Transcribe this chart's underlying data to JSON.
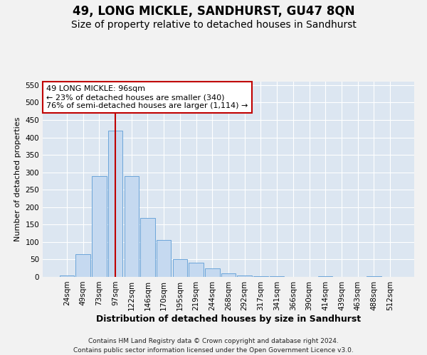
{
  "title": "49, LONG MICKLE, SANDHURST, GU47 8QN",
  "subtitle": "Size of property relative to detached houses in Sandhurst",
  "xlabel": "Distribution of detached houses by size in Sandhurst",
  "ylabel": "Number of detached properties",
  "categories": [
    "24sqm",
    "49sqm",
    "73sqm",
    "97sqm",
    "122sqm",
    "146sqm",
    "170sqm",
    "195sqm",
    "219sqm",
    "244sqm",
    "268sqm",
    "292sqm",
    "317sqm",
    "341sqm",
    "366sqm",
    "390sqm",
    "414sqm",
    "439sqm",
    "463sqm",
    "488sqm",
    "512sqm"
  ],
  "values": [
    5,
    65,
    290,
    420,
    290,
    170,
    105,
    50,
    40,
    25,
    10,
    5,
    3,
    2,
    1,
    1,
    2,
    1,
    1,
    2,
    1
  ],
  "bar_color": "#c5d9f0",
  "bar_edge_color": "#5b9bd5",
  "fig_bg_color": "#f2f2f2",
  "plot_bg_color": "#dce6f1",
  "grid_color": "#ffffff",
  "vline_color": "#c00000",
  "vline_x_index": 3,
  "annotation_line1": "49 LONG MICKLE: 96sqm",
  "annotation_line2": "← 23% of detached houses are smaller (340)",
  "annotation_line3": "76% of semi-detached houses are larger (1,114) →",
  "annotation_box_fc": "#ffffff",
  "annotation_box_ec": "#c00000",
  "ylim": [
    0,
    560
  ],
  "yticks": [
    0,
    50,
    100,
    150,
    200,
    250,
    300,
    350,
    400,
    450,
    500,
    550
  ],
  "footer": "Contains HM Land Registry data © Crown copyright and database right 2024.\nContains public sector information licensed under the Open Government Licence v3.0.",
  "title_fontsize": 12,
  "subtitle_fontsize": 10,
  "xlabel_fontsize": 9,
  "ylabel_fontsize": 8,
  "tick_fontsize": 7.5,
  "annotation_fontsize": 8,
  "footer_fontsize": 6.5
}
